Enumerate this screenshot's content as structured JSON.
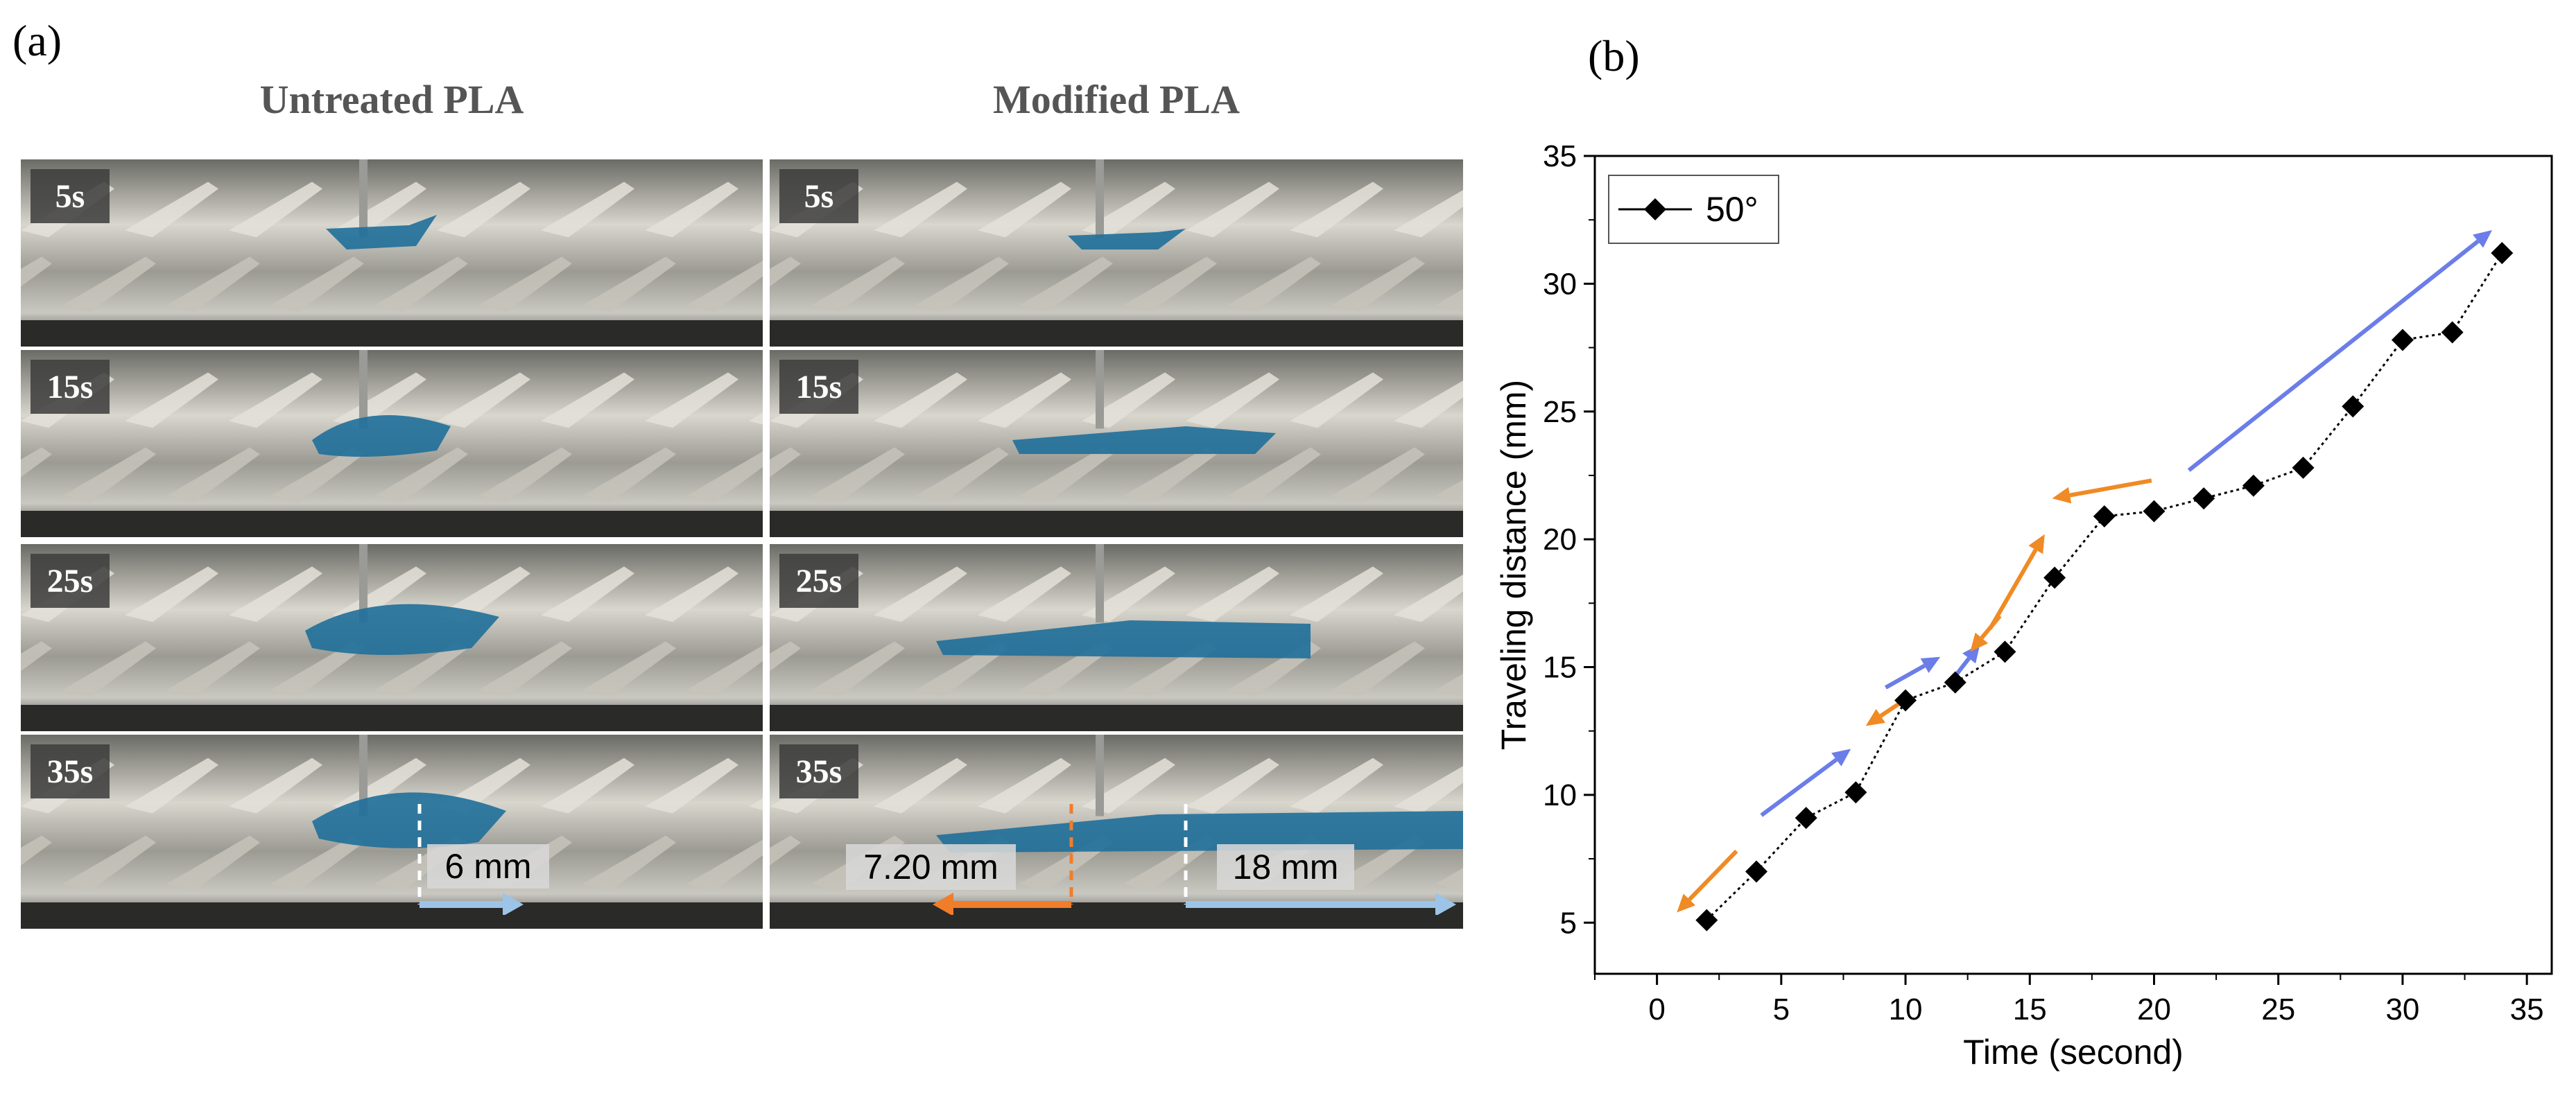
{
  "panel_a": {
    "label": "(a)",
    "columns": [
      {
        "title": "Untreated PLA",
        "frames": [
          "5s",
          "15s",
          "25s",
          "35s"
        ],
        "measurement": "6 mm"
      },
      {
        "title": "Modified PLA",
        "frames": [
          "5s",
          "15s",
          "25s",
          "35s"
        ],
        "measurement_left": "7.20 mm",
        "measurement_right": "18 mm"
      }
    ],
    "colors": {
      "drop": "#1f6f9a",
      "arrow_blue": "#9cc4e8",
      "arrow_orange": "#f07d2a"
    }
  },
  "panel_b": {
    "label": "(b)"
  },
  "chart_data": {
    "type": "line",
    "title": "",
    "xlabel": "Time (second)",
    "ylabel": "Traveling distance (mm)",
    "xlim": [
      -2.5,
      36
    ],
    "ylim": [
      3,
      35
    ],
    "xticks": [
      0,
      5,
      10,
      15,
      20,
      25,
      30,
      35
    ],
    "yticks": [
      5,
      10,
      15,
      20,
      25,
      30,
      35
    ],
    "legend": {
      "position": "top-left",
      "entries": [
        "50°"
      ]
    },
    "series": [
      {
        "name": "50°",
        "marker": "diamond",
        "line": "dotted",
        "color": "#000000",
        "x": [
          2,
          4,
          6,
          8,
          10,
          12,
          14,
          16,
          18,
          20,
          22,
          24,
          26,
          28,
          30,
          32,
          34
        ],
        "y": [
          5.1,
          7.0,
          9.1,
          10.1,
          13.7,
          14.4,
          15.6,
          18.5,
          20.9,
          21.1,
          21.6,
          22.1,
          22.8,
          25.2,
          27.8,
          28.1,
          31.2
        ]
      }
    ],
    "annotations": [
      {
        "type": "arrow",
        "color": "#f08a24",
        "from": [
          3.2,
          7.8
        ],
        "to": [
          0.8,
          5.4
        ]
      },
      {
        "type": "arrow",
        "color": "#6b7de8",
        "from": [
          4.2,
          9.2
        ],
        "to": [
          7.8,
          11.8
        ]
      },
      {
        "type": "arrow",
        "color": "#f08a24",
        "from": [
          10.1,
          13.8
        ],
        "to": [
          8.4,
          12.7
        ]
      },
      {
        "type": "arrow",
        "color": "#6b7de8",
        "from": [
          9.2,
          14.2
        ],
        "to": [
          11.4,
          15.4
        ]
      },
      {
        "type": "arrow",
        "color": "#6b7de8",
        "from": [
          11.8,
          14.4
        ],
        "to": [
          13.0,
          15.9
        ]
      },
      {
        "type": "arrow",
        "color": "#f08a24",
        "from": [
          13.8,
          17.0
        ],
        "to": [
          12.6,
          15.6
        ]
      },
      {
        "type": "arrow",
        "color": "#f08a24",
        "from": [
          13.4,
          16.5
        ],
        "to": [
          15.6,
          20.2
        ]
      },
      {
        "type": "arrow",
        "color": "#f08a24",
        "from": [
          19.9,
          22.3
        ],
        "to": [
          15.9,
          21.6
        ]
      },
      {
        "type": "arrow",
        "color": "#6b7de8",
        "from": [
          21.4,
          22.7
        ],
        "to": [
          33.6,
          32.1
        ]
      }
    ]
  }
}
